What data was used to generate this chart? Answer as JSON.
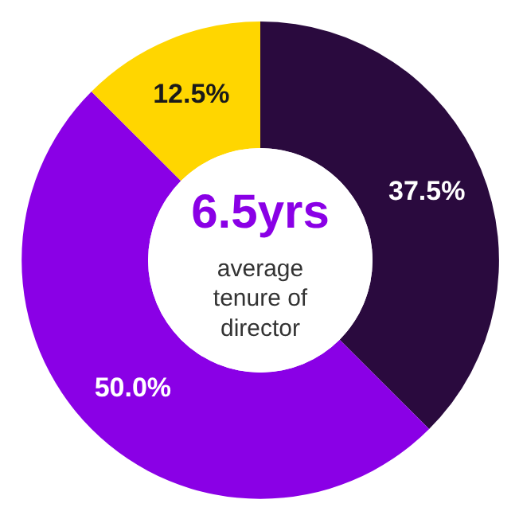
{
  "chart_data": {
    "type": "donut",
    "categories": [
      null,
      null,
      null
    ],
    "values": [
      37.5,
      50.0,
      12.5
    ],
    "colors": [
      "#2a0a3e",
      "#8a00e6",
      "#ffd600"
    ],
    "value_labels": [
      "37.5%",
      "50.0%",
      "12.5%"
    ],
    "annotations": [
      "6.5yrs",
      "average\ntenure of\ndirector"
    ]
  }
}
